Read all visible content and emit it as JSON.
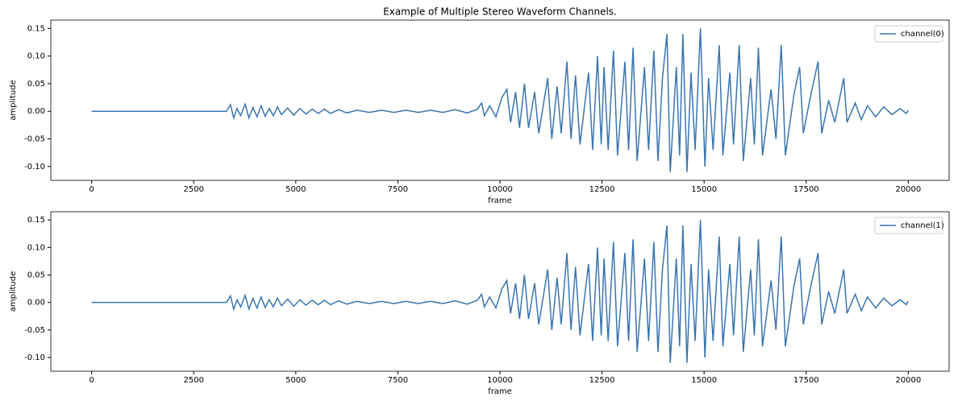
{
  "chart_data": [
    {
      "type": "line",
      "title": "Example of Multiple Stereo Waveform Channels.",
      "xlabel": "frame",
      "ylabel": "amplitude",
      "x": [
        0,
        3300,
        3400,
        3480,
        3560,
        3650,
        3760,
        3850,
        3950,
        4050,
        4150,
        4250,
        4350,
        4450,
        4550,
        4650,
        4800,
        4950,
        5100,
        5250,
        5400,
        5550,
        5700,
        5850,
        6050,
        6250,
        6500,
        6800,
        7100,
        7400,
        7700,
        8000,
        8300,
        8600,
        8900,
        9200,
        9450,
        9550,
        9620,
        9750,
        9900,
        10050,
        10170,
        10260,
        10384,
        10480,
        10600,
        10700,
        10850,
        10950,
        11170,
        11270,
        11400,
        11500,
        11640,
        11740,
        11850,
        11960,
        12170,
        12270,
        12390,
        12480,
        12550,
        12650,
        12780,
        12880,
        13060,
        13150,
        13260,
        13360,
        13540,
        13640,
        13770,
        13870,
        13980,
        14090,
        14170,
        14320,
        14400,
        14480,
        14580,
        14680,
        14780,
        14910,
        15020,
        15110,
        15220,
        15370,
        15460,
        15630,
        15720,
        15860,
        15960,
        16140,
        16230,
        16330,
        16430,
        16640,
        16760,
        16890,
        16990,
        17200,
        17340,
        17430,
        17600,
        17790,
        17880,
        18050,
        18200,
        18420,
        18500,
        18700,
        18850,
        19000,
        19200,
        19400,
        19600,
        19800,
        19950,
        20000
      ],
      "series": [
        {
          "name": "channel(0)",
          "color": "#3a75af",
          "values": [
            0,
            0,
            0.012,
            -0.012,
            0.005,
            -0.008,
            0.013,
            -0.012,
            0.007,
            -0.01,
            0.01,
            -0.009,
            0.005,
            -0.008,
            0.008,
            -0.006,
            0.006,
            -0.007,
            0.005,
            -0.005,
            0.004,
            -0.004,
            0.004,
            -0.004,
            0.003,
            -0.003,
            0.002,
            -0.002,
            0.002,
            -0.002,
            0.002,
            -0.002,
            0.002,
            -0.002,
            0.003,
            -0.003,
            0.004,
            0.015,
            -0.008,
            0.01,
            -0.01,
            0.025,
            0.04,
            -0.02,
            0.035,
            -0.03,
            0.05,
            -0.03,
            0.035,
            -0.04,
            0.06,
            -0.05,
            0.045,
            -0.04,
            0.09,
            -0.05,
            0.065,
            -0.06,
            0.07,
            -0.07,
            0.1,
            -0.06,
            0.08,
            -0.07,
            0.11,
            -0.08,
            0.09,
            -0.07,
            0.115,
            -0.09,
            0.08,
            -0.07,
            0.11,
            -0.09,
            0.06,
            0.14,
            -0.11,
            0.08,
            -0.08,
            0.14,
            -0.11,
            0.07,
            -0.07,
            0.15,
            -0.1,
            0.06,
            -0.07,
            0.12,
            -0.08,
            0.07,
            -0.06,
            0.12,
            -0.09,
            0.06,
            -0.06,
            0.115,
            -0.08,
            0.04,
            -0.05,
            0.12,
            -0.08,
            0.03,
            0.08,
            -0.04,
            0.025,
            0.09,
            -0.04,
            0.02,
            -0.02,
            0.06,
            -0.02,
            0.015,
            -0.015,
            0.01,
            -0.01,
            0.008,
            -0.006,
            0.005,
            -0.004,
            0.002
          ]
        }
      ],
      "xlim": [
        -1000,
        21000
      ],
      "ylim": [
        -0.125,
        0.165
      ],
      "xticks": [
        0,
        2500,
        5000,
        7500,
        10000,
        12500,
        15000,
        17500,
        20000
      ],
      "yticks": [
        {
          "value": -0.1,
          "label": "-0.10"
        },
        {
          "value": -0.05,
          "label": "-0.05"
        },
        {
          "value": 0,
          "label": "0.00"
        },
        {
          "value": 0.05,
          "label": "0.05"
        },
        {
          "value": 0.1,
          "label": "0.10"
        },
        {
          "value": 0.15,
          "label": "0.15"
        }
      ],
      "legend": "upper right"
    },
    {
      "type": "line",
      "xlabel": "frame",
      "ylabel": "amplitude",
      "x": [
        0,
        3300,
        3400,
        3480,
        3560,
        3650,
        3760,
        3850,
        3950,
        4050,
        4150,
        4250,
        4350,
        4450,
        4550,
        4650,
        4800,
        4950,
        5100,
        5250,
        5400,
        5550,
        5700,
        5850,
        6050,
        6250,
        6500,
        6800,
        7100,
        7400,
        7700,
        8000,
        8300,
        8600,
        8900,
        9200,
        9450,
        9550,
        9620,
        9750,
        9900,
        10050,
        10170,
        10260,
        10384,
        10480,
        10600,
        10700,
        10850,
        10950,
        11170,
        11270,
        11400,
        11500,
        11640,
        11740,
        11850,
        11960,
        12170,
        12270,
        12390,
        12480,
        12550,
        12650,
        12780,
        12880,
        13060,
        13150,
        13260,
        13360,
        13540,
        13640,
        13770,
        13870,
        13980,
        14090,
        14170,
        14320,
        14400,
        14480,
        14580,
        14680,
        14780,
        14910,
        15020,
        15110,
        15220,
        15370,
        15460,
        15630,
        15720,
        15860,
        15960,
        16140,
        16230,
        16330,
        16430,
        16640,
        16760,
        16890,
        16990,
        17200,
        17340,
        17430,
        17600,
        17790,
        17880,
        18050,
        18200,
        18420,
        18500,
        18700,
        18850,
        19000,
        19200,
        19400,
        19600,
        19800,
        19950,
        20000
      ],
      "series": [
        {
          "name": "channel(1)",
          "color": "#3a75af",
          "values": [
            0,
            0,
            0.012,
            -0.012,
            0.005,
            -0.008,
            0.013,
            -0.012,
            0.007,
            -0.01,
            0.01,
            -0.009,
            0.005,
            -0.008,
            0.008,
            -0.006,
            0.006,
            -0.007,
            0.005,
            -0.005,
            0.004,
            -0.004,
            0.004,
            -0.004,
            0.003,
            -0.003,
            0.002,
            -0.002,
            0.002,
            -0.002,
            0.002,
            -0.002,
            0.002,
            -0.002,
            0.003,
            -0.003,
            0.004,
            0.015,
            -0.008,
            0.01,
            -0.01,
            0.025,
            0.04,
            -0.02,
            0.035,
            -0.03,
            0.05,
            -0.03,
            0.035,
            -0.04,
            0.06,
            -0.05,
            0.045,
            -0.04,
            0.09,
            -0.05,
            0.065,
            -0.06,
            0.07,
            -0.07,
            0.1,
            -0.06,
            0.08,
            -0.07,
            0.11,
            -0.08,
            0.09,
            -0.07,
            0.115,
            -0.09,
            0.08,
            -0.07,
            0.11,
            -0.09,
            0.06,
            0.14,
            -0.11,
            0.08,
            -0.08,
            0.14,
            -0.11,
            0.07,
            -0.07,
            0.15,
            -0.1,
            0.06,
            -0.07,
            0.12,
            -0.08,
            0.07,
            -0.06,
            0.12,
            -0.09,
            0.06,
            -0.06,
            0.115,
            -0.08,
            0.04,
            -0.05,
            0.12,
            -0.08,
            0.03,
            0.08,
            -0.04,
            0.025,
            0.09,
            -0.04,
            0.02,
            -0.02,
            0.06,
            -0.02,
            0.015,
            -0.015,
            0.01,
            -0.01,
            0.008,
            -0.006,
            0.005,
            -0.004,
            0.002
          ]
        }
      ],
      "xlim": [
        -1000,
        21000
      ],
      "ylim": [
        -0.125,
        0.165
      ],
      "xticks": [
        0,
        2500,
        5000,
        7500,
        10000,
        12500,
        15000,
        17500,
        20000
      ],
      "yticks": [
        {
          "value": -0.1,
          "label": "-0.10"
        },
        {
          "value": -0.05,
          "label": "-0.05"
        },
        {
          "value": 0,
          "label": "0.00"
        },
        {
          "value": 0.05,
          "label": "0.05"
        },
        {
          "value": 0.1,
          "label": "0.10"
        },
        {
          "value": 0.15,
          "label": "0.15"
        }
      ],
      "legend": "upper right"
    }
  ]
}
